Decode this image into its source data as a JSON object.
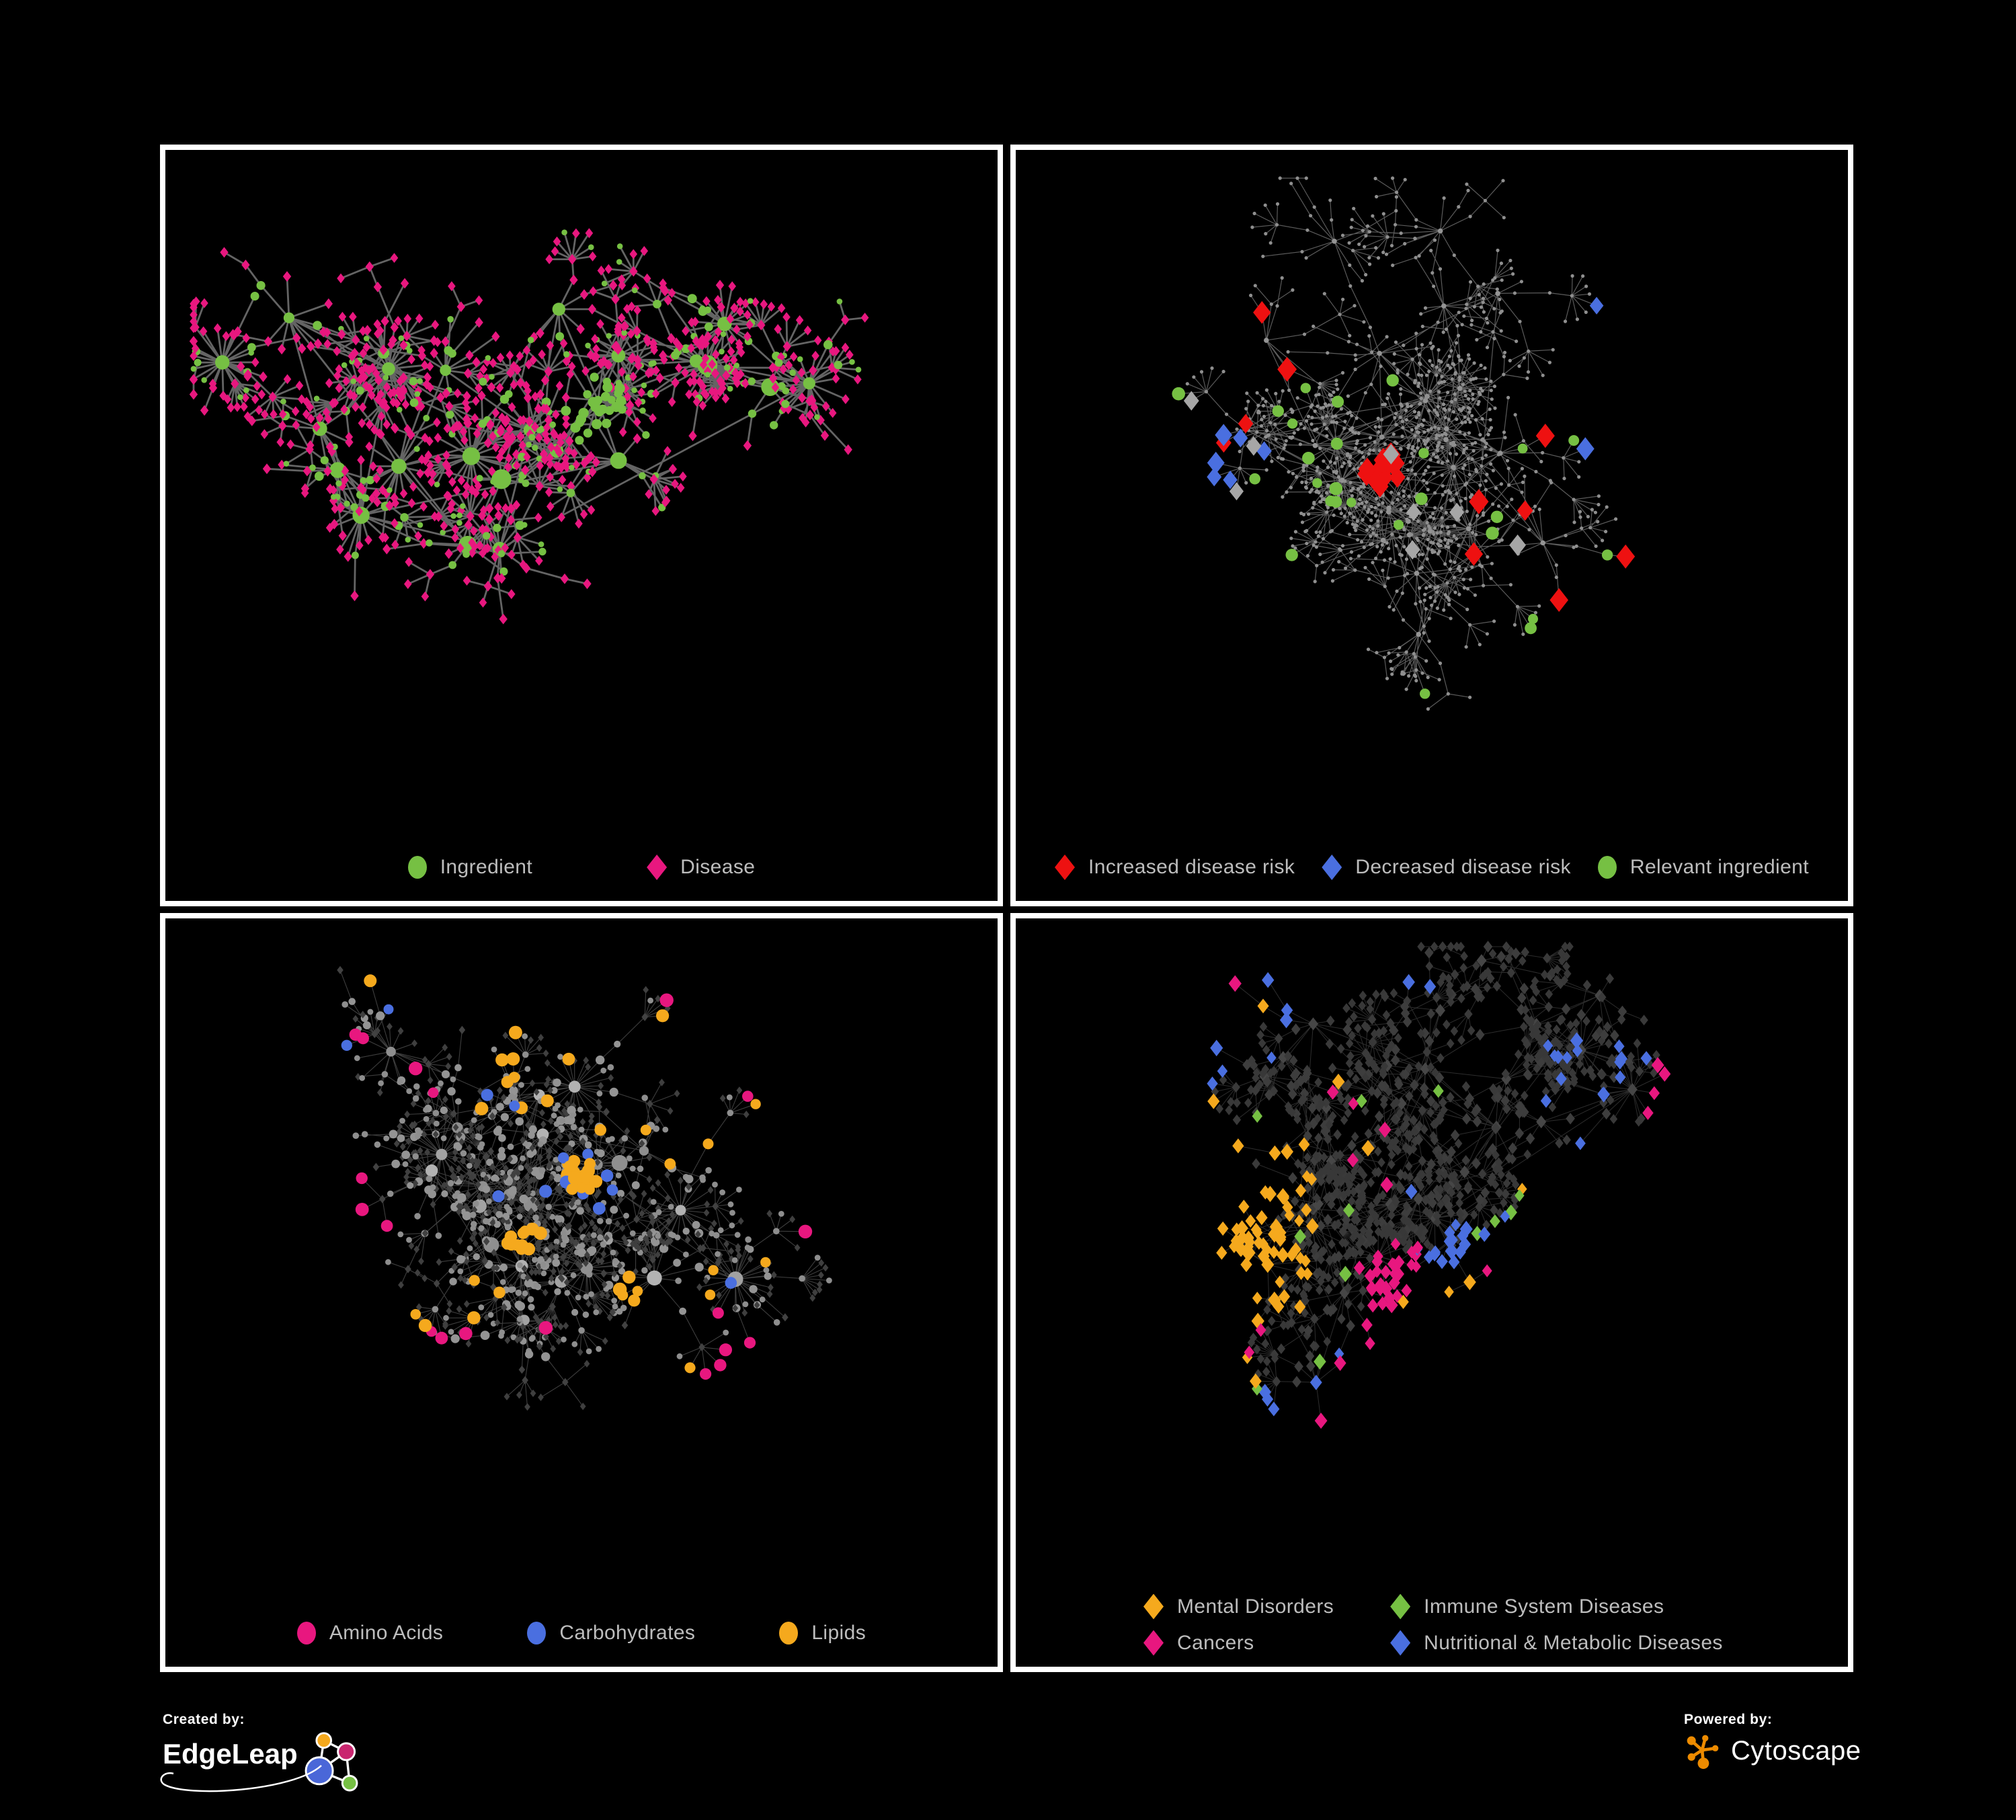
{
  "figure": {
    "background": "#000000",
    "panel_border": "#ffffff",
    "legend_text_color": "#bdbdbd"
  },
  "colors": {
    "green": "#76c043",
    "pink": "#e8177f",
    "red": "#ee1111",
    "blue": "#4a6fe0",
    "orange": "#f5a91d",
    "gray_diamond": "#a6a6a6",
    "p1_edge": "#6d6d6d",
    "p2_edge": "#7a7a7a",
    "p3_edge": "#9a9a9a",
    "p4_edge": "#969696",
    "p2_base_node": "#8f8f8f",
    "p3_base_circle": "#9c9c9c",
    "p3_dark_diamond": "#3f3f3f",
    "p4_base_diamond": "#3d3d3d"
  },
  "panels": [
    {
      "id": "ingredient-disease",
      "legend": [
        {
          "label": "Ingredient",
          "shape": "circle",
          "color": "#76c043"
        },
        {
          "label": "Disease",
          "shape": "diamond",
          "color": "#e8177f"
        }
      ]
    },
    {
      "id": "disease-risk",
      "legend": [
        {
          "label": "Increased disease risk",
          "shape": "diamond",
          "color": "#ee1111"
        },
        {
          "label": "Decreased disease risk",
          "shape": "diamond",
          "color": "#4a6fe0"
        },
        {
          "label": "Relevant ingredient",
          "shape": "circle",
          "color": "#76c043"
        }
      ]
    },
    {
      "id": "macronutrients",
      "legend": [
        {
          "label": "Amino Acids",
          "shape": "circle",
          "color": "#e8177f"
        },
        {
          "label": "Carbohydrates",
          "shape": "circle",
          "color": "#4a6fe0"
        },
        {
          "label": "Lipids",
          "shape": "circle",
          "color": "#f5a91d"
        }
      ]
    },
    {
      "id": "disease-classes",
      "legend": [
        {
          "label": "Mental Disorders",
          "shape": "diamond",
          "color": "#f5a91d"
        },
        {
          "label": "Immune System Diseases",
          "shape": "diamond",
          "color": "#76c043"
        },
        {
          "label": "Cancers",
          "shape": "diamond",
          "color": "#e8177f"
        },
        {
          "label": "Nutritional & Metabolic Diseases",
          "shape": "diamond",
          "color": "#4a6fe0"
        }
      ]
    }
  ],
  "footer": {
    "created_by_label": "Created by:",
    "created_by_brand": "EdgeLeap",
    "powered_by_label": "Powered by:",
    "powered_by_brand": "Cytoscape",
    "edgeleap_colors": [
      "#f5a91d",
      "#c9266f",
      "#4a67d8",
      "#76c043"
    ],
    "cytoscape_color": "#ed8b00"
  }
}
